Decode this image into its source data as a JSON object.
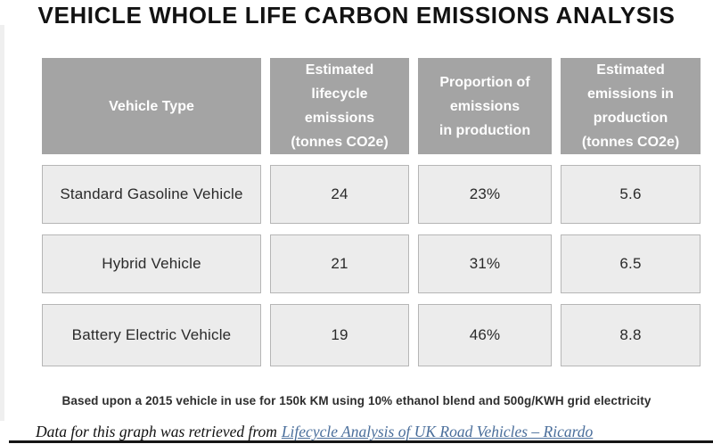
{
  "title": "VEHICLE WHOLE LIFE CARBON EMISSIONS ANALYSIS",
  "table": {
    "headers": [
      "Vehicle Type",
      "Estimated\nlifecycle\nemissions\n(tonnes CO2e)",
      "Proportion of\nemissions\nin production",
      "Estimated\nemissions in\nproduction\n(tonnes CO2e)"
    ],
    "rows": [
      [
        "Standard Gasoline Vehicle",
        "24",
        "23%",
        "5.6"
      ],
      [
        "Hybrid Vehicle",
        "21",
        "31%",
        "6.5"
      ],
      [
        "Battery Electric Vehicle",
        "19",
        "46%",
        "8.8"
      ]
    ]
  },
  "footnote": "Based upon a 2015 vehicle in use for 150k KM using 10% ethanol blend and 500g/KWH grid electricity",
  "citation": {
    "prefix": "Data for this graph was retrieved from",
    "link_text": "Lifecycle Analysis of UK Road Vehicles – Ricardo"
  },
  "chart_data": {
    "type": "table",
    "title": "VEHICLE WHOLE LIFE CARBON EMISSIONS ANALYSIS",
    "columns": [
      "Vehicle Type",
      "Estimated lifecycle emissions (tonnes CO2e)",
      "Proportion of emissions in production",
      "Estimated emissions in production (tonnes CO2e)"
    ],
    "rows": [
      [
        "Standard Gasoline Vehicle",
        24,
        "23%",
        5.6
      ],
      [
        "Hybrid Vehicle",
        21,
        "31%",
        6.5
      ],
      [
        "Battery Electric Vehicle",
        19,
        "46%",
        8.8
      ]
    ],
    "note": "Based upon a 2015 vehicle in use for 150k KM using 10% ethanol blend and 500g/KWH grid electricity",
    "source": "Lifecycle Analysis of UK Road Vehicles – Ricardo"
  },
  "colors": {
    "header_bg": "#a4a4a4",
    "header_text": "#ffffff",
    "cell_bg": "#ececec",
    "cell_border": "#b6b6b6",
    "title_text": "#121212",
    "body_text": "#2a2a2a",
    "link": "#4a6e9b",
    "rule": "#151515"
  }
}
